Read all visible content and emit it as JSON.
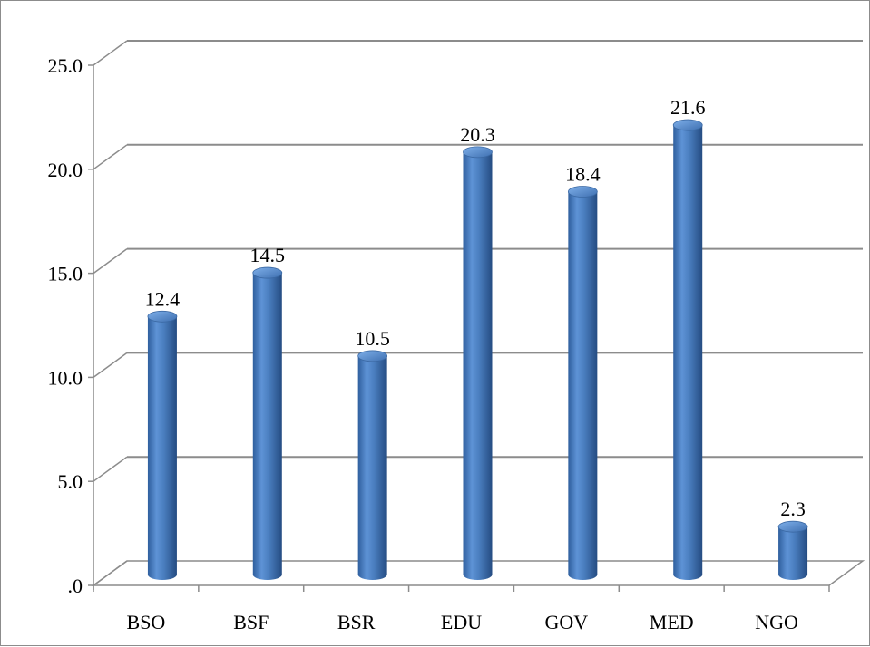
{
  "chart_data": {
    "type": "bar",
    "style": "3d-cylinder",
    "categories": [
      "BSO",
      "BSF",
      "BSR",
      "EDU",
      "GOV",
      "MED",
      "NGO"
    ],
    "values": [
      12.4,
      14.5,
      10.5,
      20.3,
      18.4,
      21.6,
      2.3
    ],
    "value_labels": [
      "12.4",
      "14.5",
      "10.5",
      "20.3",
      "18.4",
      "21.6",
      "2.3"
    ],
    "y_ticks": [
      ".0",
      "5.0",
      "10.0",
      "15.0",
      "20.0",
      "25.0"
    ],
    "ylim": [
      0,
      25
    ],
    "grid": true,
    "legend": "none",
    "bar_color": "#4a7ebf",
    "title": "",
    "xlabel": "",
    "ylabel": ""
  }
}
